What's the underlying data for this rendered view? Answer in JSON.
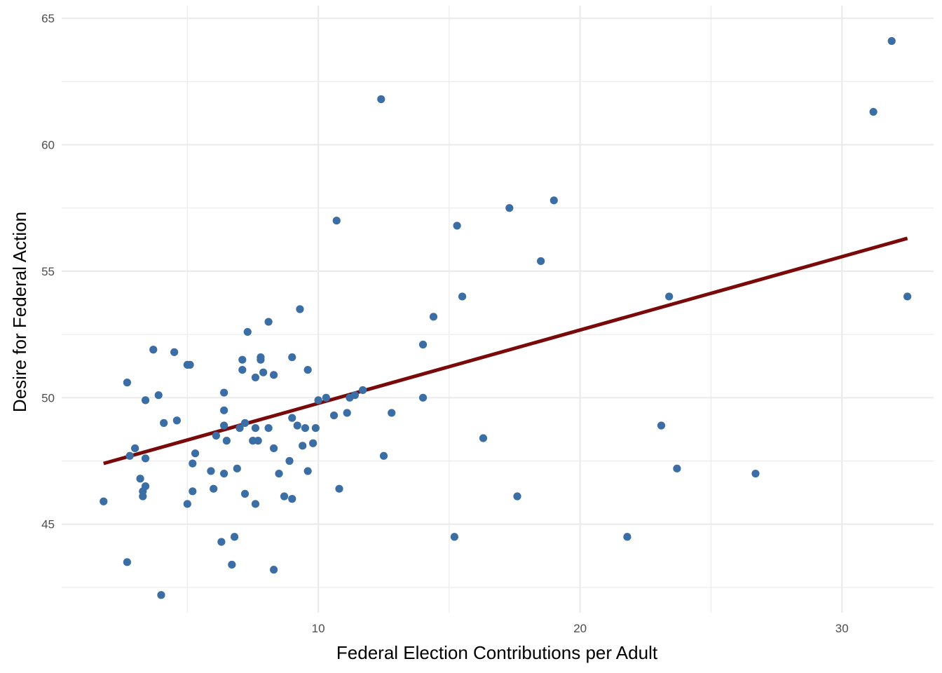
{
  "chart_data": {
    "type": "scatter",
    "xlabel": "Federal Election Contributions per Adult",
    "ylabel": "Desire for Federal Action",
    "xlim": [
      0.2,
      33.5
    ],
    "ylim": [
      41.5,
      65.5
    ],
    "x_major_ticks": [
      10,
      20,
      30
    ],
    "x_minor_ticks": [
      5,
      15,
      25
    ],
    "y_major_ticks": [
      45,
      50,
      55,
      60,
      65
    ],
    "y_minor_ticks": [
      42.5,
      47.5,
      52.5,
      57.5,
      62.5
    ],
    "grid": true,
    "colors": {
      "points": "#3a6ea5",
      "fit_line": "#7a0a0a",
      "grid": "#ebebeb",
      "tick_text": "#4d4d4d"
    },
    "fit_line": {
      "x": [
        1.8,
        32.5
      ],
      "y": [
        47.4,
        56.3
      ]
    },
    "points": [
      {
        "x": 1.8,
        "y": 45.9
      },
      {
        "x": 2.7,
        "y": 50.6
      },
      {
        "x": 2.7,
        "y": 43.5
      },
      {
        "x": 2.8,
        "y": 47.7
      },
      {
        "x": 3.0,
        "y": 48.0
      },
      {
        "x": 3.2,
        "y": 46.8
      },
      {
        "x": 3.3,
        "y": 46.3
      },
      {
        "x": 3.3,
        "y": 46.1
      },
      {
        "x": 3.4,
        "y": 46.5
      },
      {
        "x": 3.4,
        "y": 49.9
      },
      {
        "x": 3.4,
        "y": 47.6
      },
      {
        "x": 3.7,
        "y": 51.9
      },
      {
        "x": 3.9,
        "y": 50.1
      },
      {
        "x": 4.0,
        "y": 42.2
      },
      {
        "x": 4.1,
        "y": 49.0
      },
      {
        "x": 4.5,
        "y": 51.8
      },
      {
        "x": 4.6,
        "y": 49.1
      },
      {
        "x": 5.0,
        "y": 51.3
      },
      {
        "x": 5.1,
        "y": 51.3
      },
      {
        "x": 5.0,
        "y": 45.8
      },
      {
        "x": 5.3,
        "y": 47.8
      },
      {
        "x": 5.2,
        "y": 46.3
      },
      {
        "x": 5.2,
        "y": 47.4
      },
      {
        "x": 5.9,
        "y": 47.1
      },
      {
        "x": 6.0,
        "y": 46.4
      },
      {
        "x": 6.1,
        "y": 48.5
      },
      {
        "x": 6.3,
        "y": 44.3
      },
      {
        "x": 6.4,
        "y": 47.0
      },
      {
        "x": 6.4,
        "y": 48.9
      },
      {
        "x": 6.4,
        "y": 49.5
      },
      {
        "x": 6.4,
        "y": 50.2
      },
      {
        "x": 6.5,
        "y": 48.3
      },
      {
        "x": 6.7,
        "y": 43.4
      },
      {
        "x": 6.8,
        "y": 44.5
      },
      {
        "x": 6.9,
        "y": 47.2
      },
      {
        "x": 7.0,
        "y": 48.8
      },
      {
        "x": 7.1,
        "y": 51.1
      },
      {
        "x": 7.1,
        "y": 51.5
      },
      {
        "x": 7.2,
        "y": 49.0
      },
      {
        "x": 7.2,
        "y": 46.2
      },
      {
        "x": 7.3,
        "y": 52.6
      },
      {
        "x": 7.5,
        "y": 48.3
      },
      {
        "x": 7.6,
        "y": 48.8
      },
      {
        "x": 7.6,
        "y": 50.8
      },
      {
        "x": 7.6,
        "y": 45.8
      },
      {
        "x": 7.7,
        "y": 48.3
      },
      {
        "x": 7.8,
        "y": 51.6
      },
      {
        "x": 7.8,
        "y": 51.5
      },
      {
        "x": 7.9,
        "y": 51.0
      },
      {
        "x": 8.1,
        "y": 48.8
      },
      {
        "x": 8.1,
        "y": 53.0
      },
      {
        "x": 8.3,
        "y": 50.9
      },
      {
        "x": 8.3,
        "y": 48.0
      },
      {
        "x": 8.3,
        "y": 43.2
      },
      {
        "x": 8.5,
        "y": 47.0
      },
      {
        "x": 8.7,
        "y": 46.1
      },
      {
        "x": 8.9,
        "y": 47.5
      },
      {
        "x": 9.0,
        "y": 49.2
      },
      {
        "x": 9.0,
        "y": 51.6
      },
      {
        "x": 9.0,
        "y": 46.0
      },
      {
        "x": 9.2,
        "y": 48.9
      },
      {
        "x": 9.3,
        "y": 53.5
      },
      {
        "x": 9.4,
        "y": 48.1
      },
      {
        "x": 9.5,
        "y": 48.8
      },
      {
        "x": 9.6,
        "y": 47.1
      },
      {
        "x": 9.6,
        "y": 51.1
      },
      {
        "x": 9.8,
        "y": 48.2
      },
      {
        "x": 9.9,
        "y": 48.8
      },
      {
        "x": 10.0,
        "y": 49.9
      },
      {
        "x": 10.3,
        "y": 50.0
      },
      {
        "x": 10.6,
        "y": 49.3
      },
      {
        "x": 10.7,
        "y": 57.0
      },
      {
        "x": 10.8,
        "y": 46.4
      },
      {
        "x": 11.1,
        "y": 49.4
      },
      {
        "x": 11.2,
        "y": 50.0
      },
      {
        "x": 11.4,
        "y": 50.1
      },
      {
        "x": 11.7,
        "y": 50.3
      },
      {
        "x": 12.4,
        "y": 61.8
      },
      {
        "x": 12.5,
        "y": 47.7
      },
      {
        "x": 12.8,
        "y": 49.4
      },
      {
        "x": 14.0,
        "y": 50.0
      },
      {
        "x": 14.0,
        "y": 52.1
      },
      {
        "x": 14.4,
        "y": 53.2
      },
      {
        "x": 15.2,
        "y": 44.5
      },
      {
        "x": 15.3,
        "y": 56.8
      },
      {
        "x": 15.5,
        "y": 54.0
      },
      {
        "x": 16.3,
        "y": 48.4
      },
      {
        "x": 17.3,
        "y": 57.5
      },
      {
        "x": 17.6,
        "y": 46.1
      },
      {
        "x": 18.5,
        "y": 55.4
      },
      {
        "x": 19.0,
        "y": 57.8
      },
      {
        "x": 21.8,
        "y": 44.5
      },
      {
        "x": 23.1,
        "y": 48.9
      },
      {
        "x": 23.4,
        "y": 54.0
      },
      {
        "x": 23.7,
        "y": 47.2
      },
      {
        "x": 26.7,
        "y": 47.0
      },
      {
        "x": 31.2,
        "y": 61.3
      },
      {
        "x": 31.9,
        "y": 64.1
      },
      {
        "x": 32.5,
        "y": 54.0
      }
    ]
  }
}
